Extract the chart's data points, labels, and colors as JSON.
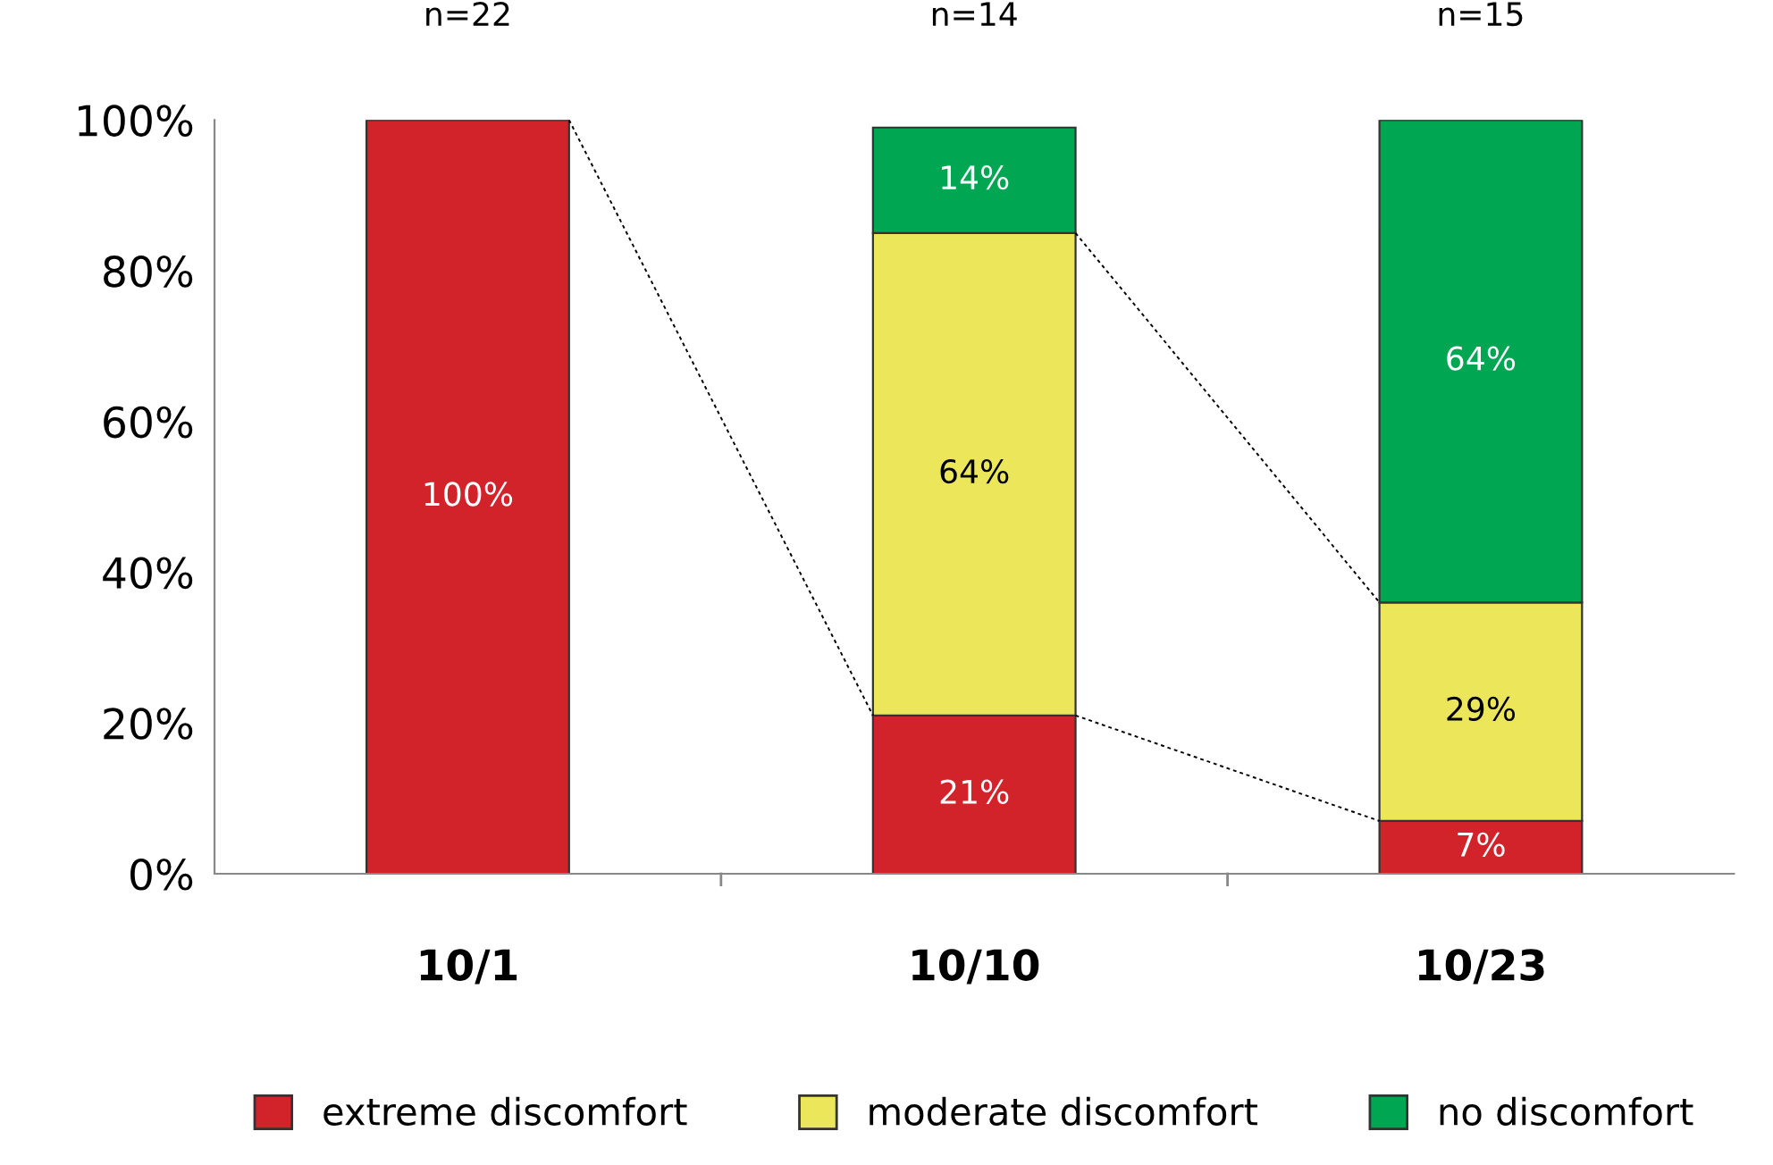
{
  "chart_data": {
    "type": "bar",
    "stacked": true,
    "categories": [
      "10/1",
      "10/10",
      "10/23"
    ],
    "series": [
      {
        "name": "extreme discomfort",
        "color": "#d2232a",
        "values": [
          100,
          21,
          7
        ],
        "value_labels": [
          "100%",
          "21%",
          "7%"
        ]
      },
      {
        "name": "moderate discomfort",
        "color": "#ece65a",
        "values": [
          null,
          64,
          29
        ],
        "value_labels": [
          null,
          "64%",
          "29%"
        ]
      },
      {
        "name": "no discomfort",
        "color": "#00a651",
        "values": [
          null,
          14,
          64
        ],
        "value_labels": [
          null,
          "14%",
          "64%"
        ]
      }
    ],
    "ylim": [
      0,
      100
    ],
    "yticks": [
      {
        "value": 0,
        "label": "0%"
      },
      {
        "value": 20,
        "label": "20%"
      },
      {
        "value": 40,
        "label": "40%"
      },
      {
        "value": 60,
        "label": "60%"
      },
      {
        "value": 80,
        "label": "80%"
      },
      {
        "value": 100,
        "label": "100%"
      }
    ],
    "annotations": [
      {
        "text": "n=22",
        "x": "10/1",
        "y": 100
      },
      {
        "text": "n=14",
        "x": "10/10",
        "y": 100
      },
      {
        "text": "n=15",
        "x": "10/23",
        "y": 100
      }
    ],
    "grid": false,
    "legend": "bottom"
  }
}
